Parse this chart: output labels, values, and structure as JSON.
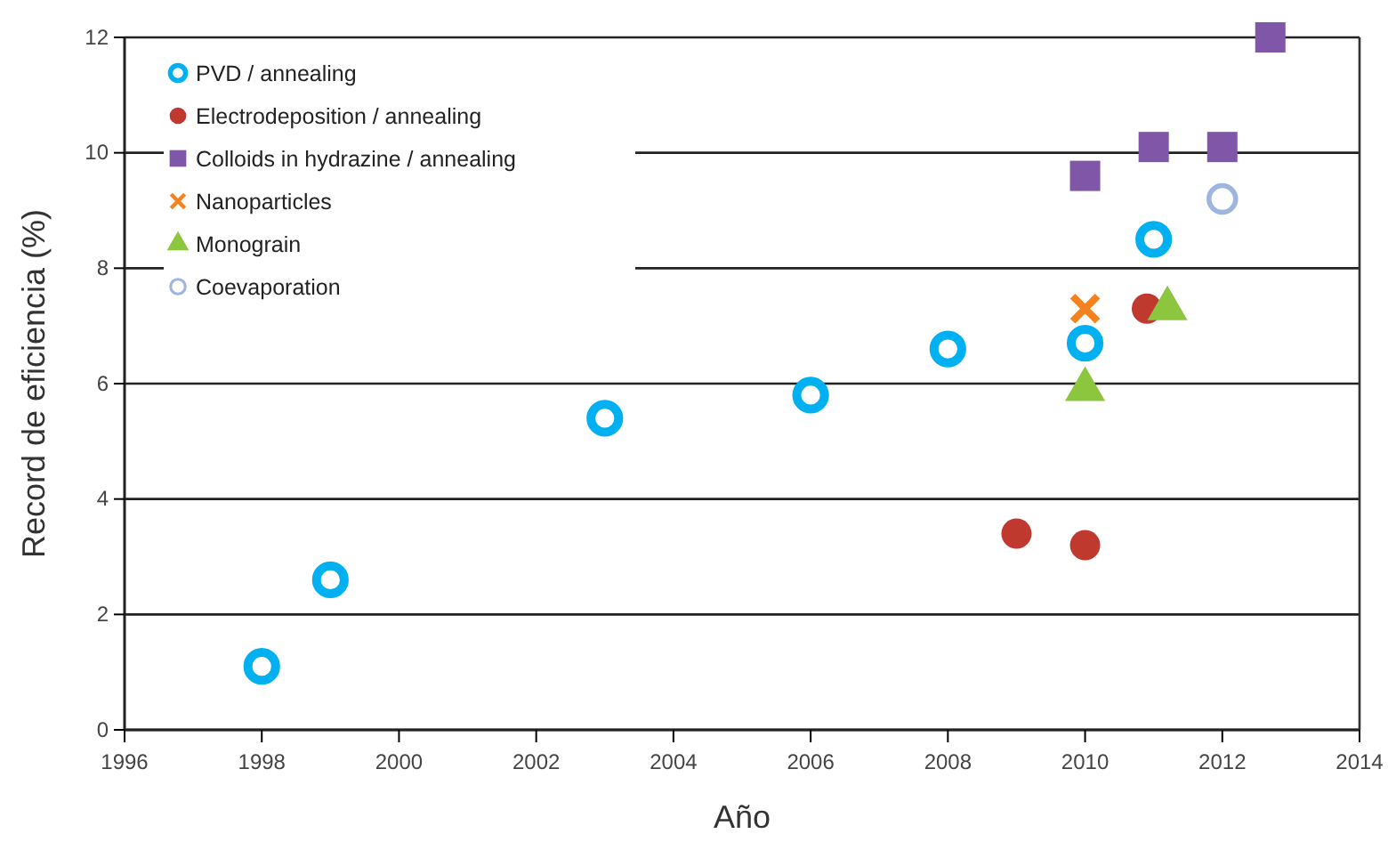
{
  "chart_data": {
    "type": "scatter",
    "xlabel": "Año",
    "ylabel": "Record de eficiencia (%)",
    "xlim": [
      1996,
      2014
    ],
    "xticks": [
      1996,
      1998,
      2000,
      2002,
      2004,
      2006,
      2008,
      2010,
      2012,
      2014
    ],
    "ylim": [
      0,
      12
    ],
    "yticks": [
      0,
      2,
      4,
      6,
      8,
      10,
      12
    ],
    "grid": "y",
    "legend": "top left",
    "series": [
      {
        "name": "PVD / annealing",
        "color": "#00b0f0",
        "marker": "circle",
        "x": [
          1998,
          1999,
          2003,
          2006,
          2008,
          2010,
          2011
        ],
        "values": [
          1.1,
          2.6,
          5.4,
          5.8,
          6.6,
          6.7,
          8.5
        ]
      },
      {
        "name": "Electrodeposition / annealing",
        "color": "#c0392f",
        "marker": "circle",
        "x": [
          2009,
          2010,
          2010.9
        ],
        "values": [
          3.4,
          3.2,
          7.3
        ]
      },
      {
        "name": "Colloids in hydrazine / annealing",
        "color": "#7f56a8",
        "marker": "square",
        "x": [
          2010,
          2011,
          2012,
          2012.7
        ],
        "values": [
          9.6,
          10.1,
          10.1,
          12.0
        ]
      },
      {
        "name": "Nanoparticles",
        "color": "#f58220",
        "marker": "cross",
        "x": [
          2010
        ],
        "values": [
          7.3
        ]
      },
      {
        "name": "Monograin",
        "color": "#8cc63f",
        "marker": "triangle",
        "x": [
          2010,
          2011.2
        ],
        "values": [
          5.9,
          7.3
        ]
      },
      {
        "name": "Coevaporation",
        "color": "#9db5e0",
        "marker": "circle",
        "x": [
          2012
        ],
        "values": [
          9.2
        ]
      }
    ]
  }
}
